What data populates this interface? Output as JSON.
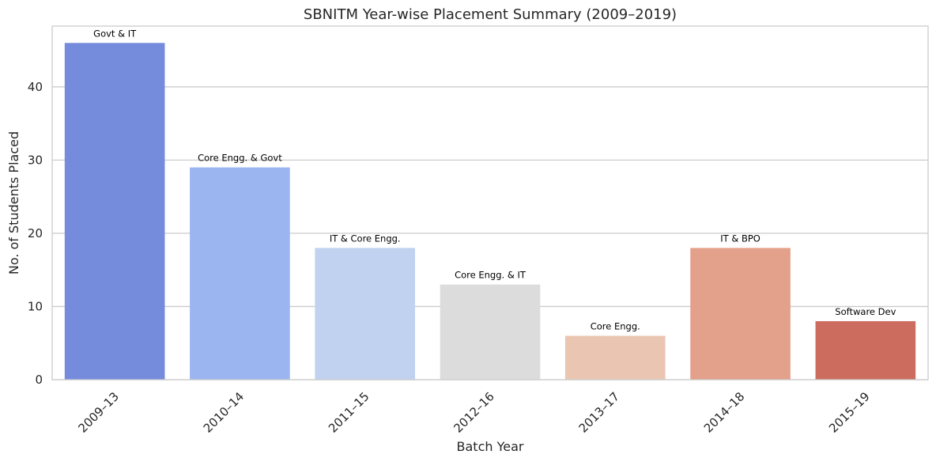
{
  "chart_data": {
    "type": "bar",
    "title": "SBNITM Year-wise Placement Summary (2009–2019)",
    "xlabel": "Batch Year",
    "ylabel": "No. of Students Placed",
    "ylim": [
      0,
      48.3
    ],
    "yticks": [
      0,
      10,
      20,
      30,
      40
    ],
    "grid": true,
    "categories": [
      "2009–13",
      "2010–14",
      "2011–15",
      "2012–16",
      "2013–17",
      "2014–18",
      "2015–19"
    ],
    "values": [
      46,
      29,
      18,
      13,
      6,
      18,
      8
    ],
    "annotations": [
      "Govt & IT",
      "Core Engg. & Govt",
      "IT & Core Engg.",
      "Core Engg. & IT",
      "Core Engg.",
      "IT & BPO",
      "Software Dev"
    ],
    "colors": [
      "#758bdc",
      "#9bb5f1",
      "#c1d1f0",
      "#dcdcdc",
      "#eac5b2",
      "#e3a08a",
      "#cc6c5f"
    ]
  }
}
